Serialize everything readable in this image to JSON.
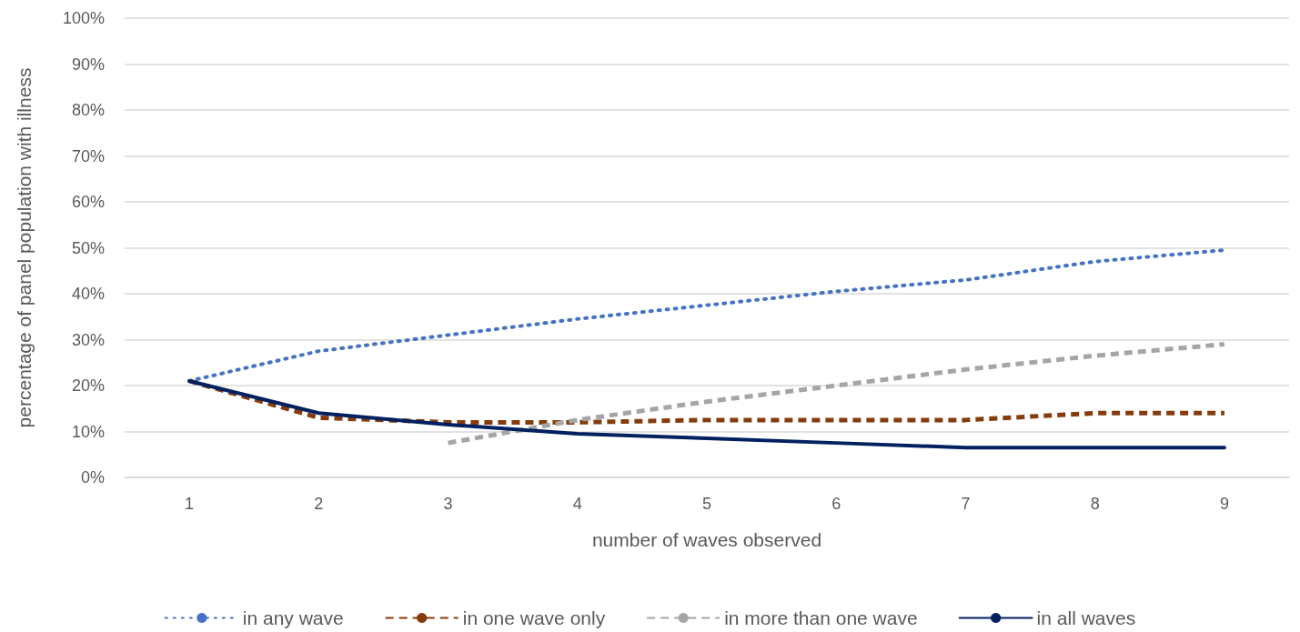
{
  "chart_data": {
    "type": "line",
    "xlabel": "number of waves observed",
    "ylabel": "percentage of panel population with illness",
    "categories": [
      "1",
      "2",
      "3",
      "4",
      "5",
      "6",
      "7",
      "8",
      "9"
    ],
    "series": [
      {
        "name": "in any wave",
        "color": "#4472c4",
        "line_style": "dotted",
        "values": [
          21,
          27.5,
          31,
          34.5,
          37.5,
          40.5,
          43,
          47,
          49.5
        ]
      },
      {
        "name": "in one wave only",
        "color": "#843c0c",
        "line_style": "dashed",
        "values": [
          21,
          13,
          12,
          12,
          12.5,
          12.5,
          12.5,
          14,
          14
        ]
      },
      {
        "name": "in more than one wave",
        "color": "#a5a5a5",
        "line_style": "dashed",
        "values": [
          null,
          null,
          7.5,
          12.5,
          16.5,
          20,
          23.5,
          26.5,
          29
        ]
      },
      {
        "name": "in all waves",
        "color": "#002060",
        "line_style": "solid",
        "values": [
          21,
          14,
          11.5,
          9.5,
          8.5,
          7.5,
          6.5,
          6.5,
          6.5
        ]
      }
    ],
    "ylim": [
      0,
      100
    ],
    "yticks": [
      {
        "value": 0,
        "label": "0%"
      },
      {
        "value": 10,
        "label": "10%"
      },
      {
        "value": 20,
        "label": "20%"
      },
      {
        "value": 30,
        "label": "30%"
      },
      {
        "value": 40,
        "label": "40%"
      },
      {
        "value": 50,
        "label": "50%"
      },
      {
        "value": 60,
        "label": "60%"
      },
      {
        "value": 70,
        "label": "70%"
      },
      {
        "value": 80,
        "label": "80%"
      },
      {
        "value": 90,
        "label": "90%"
      },
      {
        "value": 100,
        "label": "100%"
      }
    ],
    "grid": "y",
    "legend": "bottom",
    "marker": "none"
  }
}
